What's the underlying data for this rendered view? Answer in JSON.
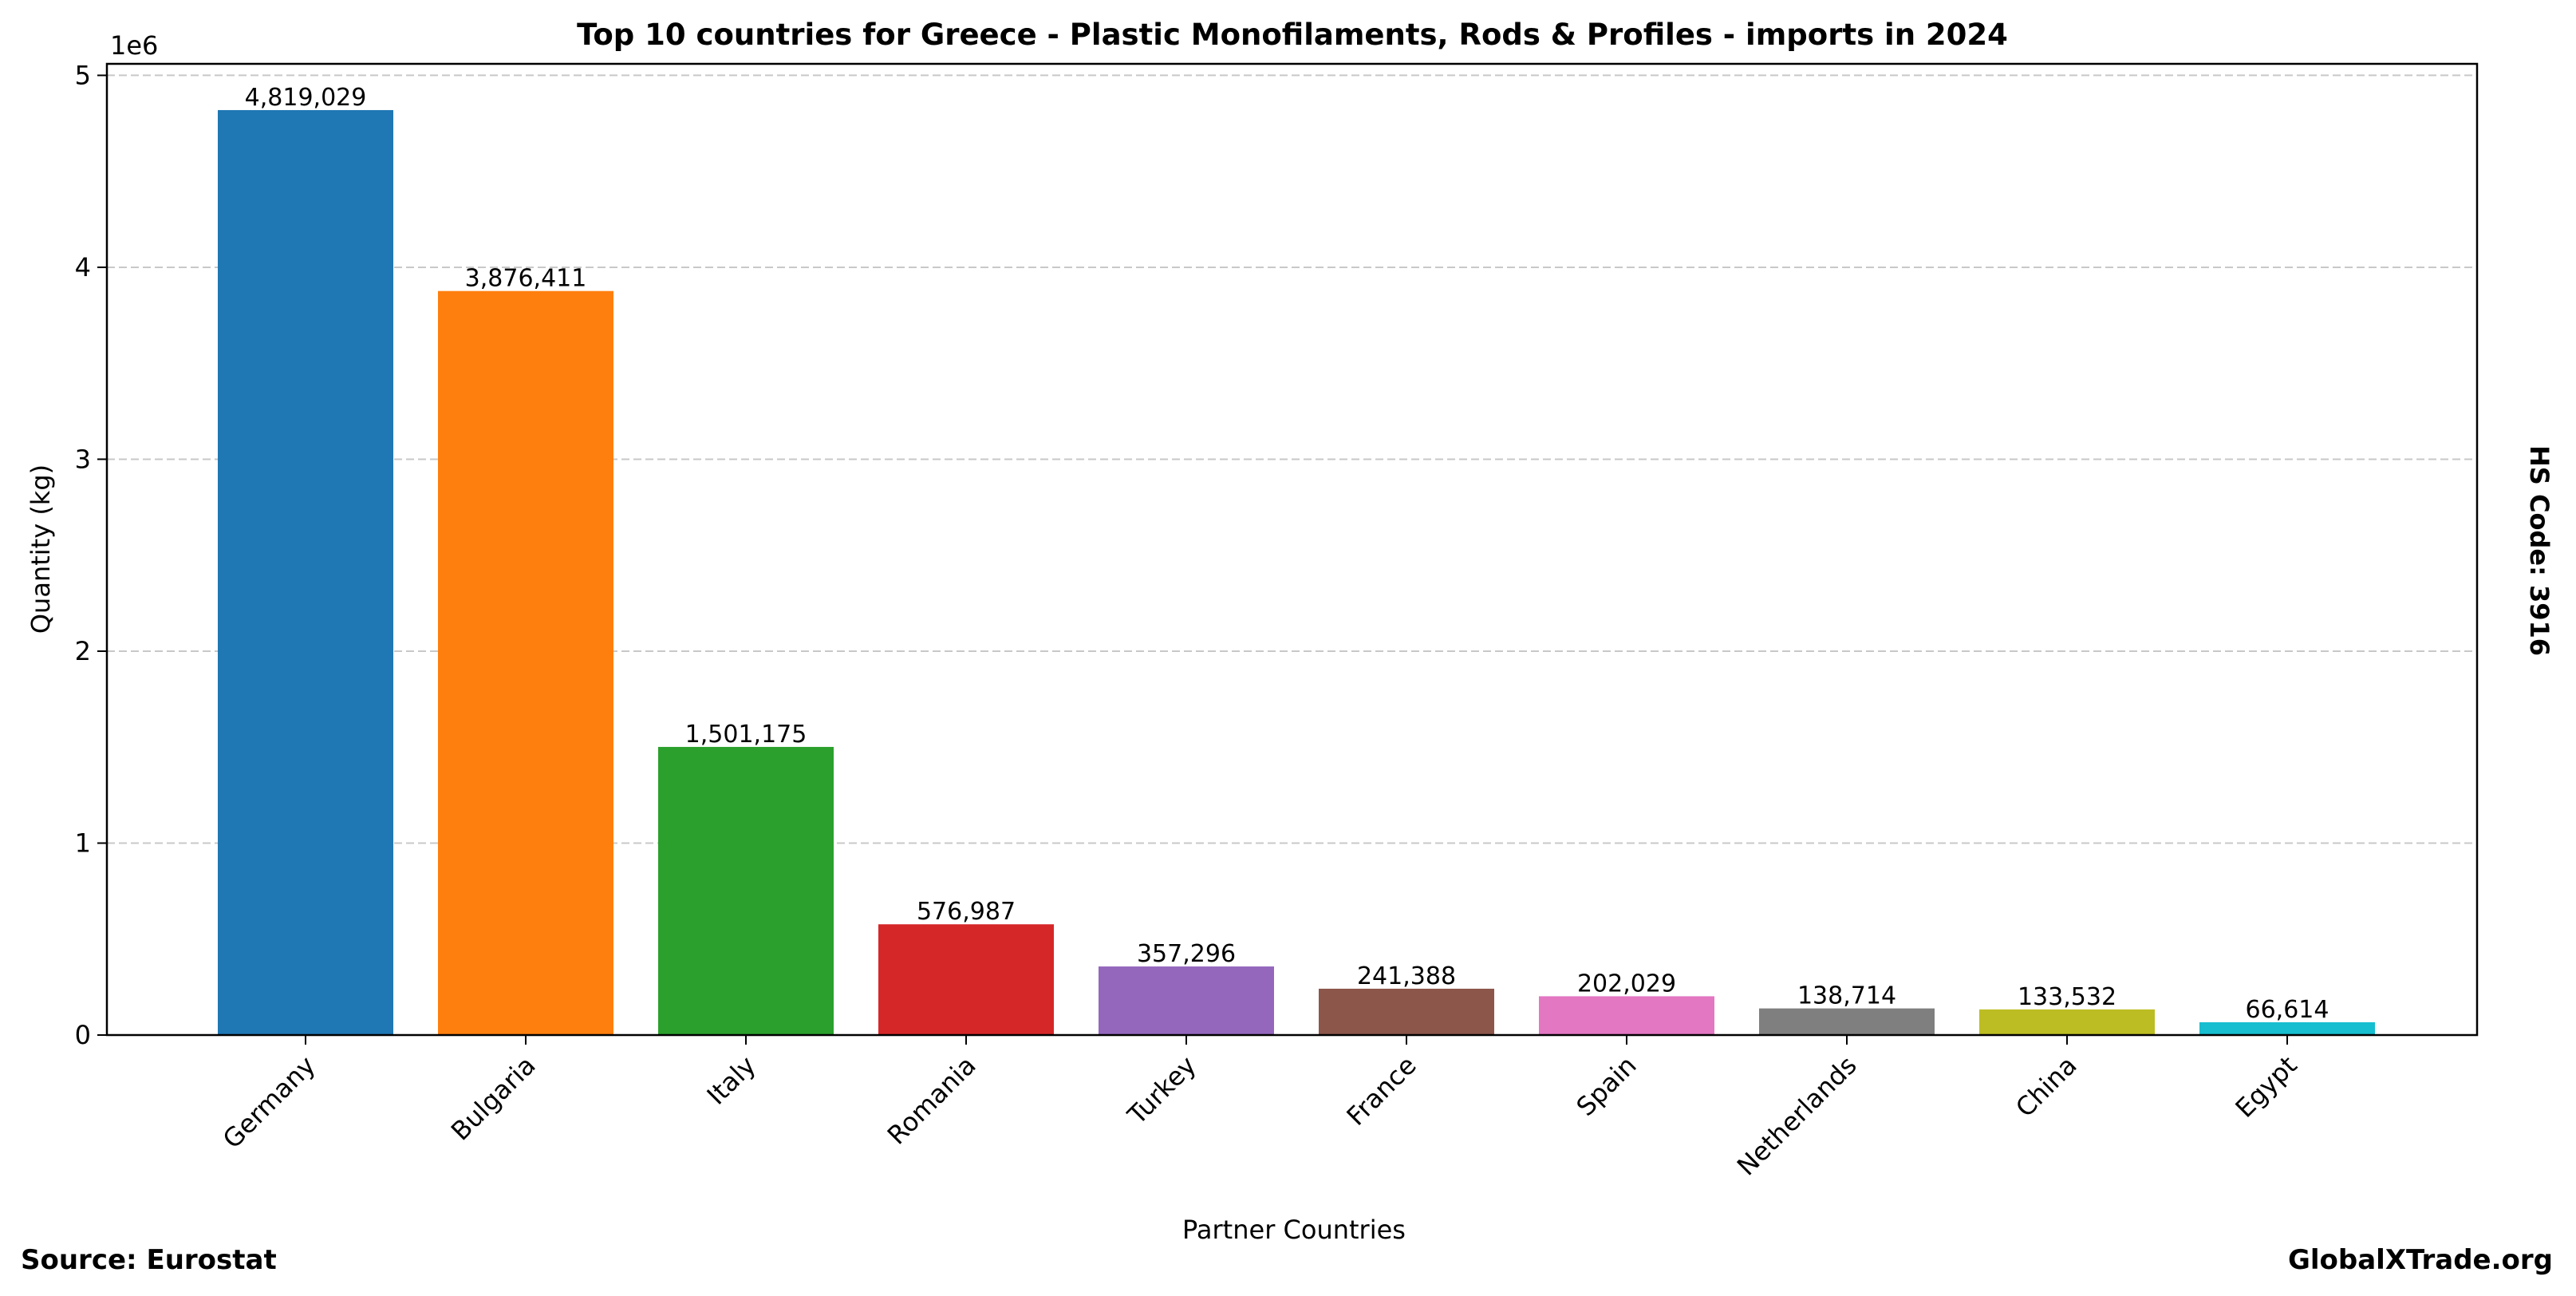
{
  "chart_data": {
    "type": "bar",
    "title": "Top 10 countries for Greece - Plastic Monofilaments, Rods & Profiles - imports in 2024",
    "xlabel": "Partner Countries",
    "ylabel": "Quantity (kg)",
    "y_scale_label": "1e6",
    "ylim": [
      0,
      5060000
    ],
    "yticks": [
      0,
      1,
      2,
      3,
      4,
      5
    ],
    "grid": "horizontal dashed",
    "categories": [
      "Germany",
      "Bulgaria",
      "Italy",
      "Romania",
      "Turkey",
      "France",
      "Spain",
      "Netherlands",
      "China",
      "Egypt"
    ],
    "values": [
      4819029,
      3876411,
      1501175,
      576987,
      357296,
      241388,
      202029,
      138714,
      133532,
      66614
    ],
    "value_labels": [
      "4,819,029",
      "3,876,411",
      "1,501,175",
      "576,987",
      "357,296",
      "241,388",
      "202,029",
      "138,714",
      "133,532",
      "66,614"
    ],
    "colors": [
      "#1f77b4",
      "#ff7f0e",
      "#2ca02c",
      "#d62728",
      "#9467bd",
      "#8c564b",
      "#e377c2",
      "#7f7f7f",
      "#bcbd22",
      "#17becf"
    ]
  },
  "side_note": "HS Code: 3916",
  "source": "Source: Eurostat",
  "brand": "GlobalXTrade.org"
}
